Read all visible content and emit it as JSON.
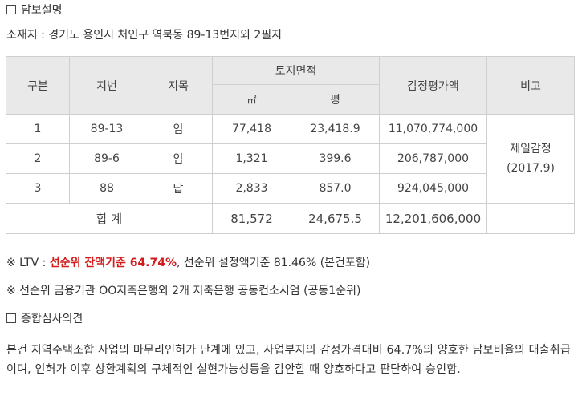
{
  "section1": {
    "title": "담보설명"
  },
  "location": "소재지 : 경기도 용인시 처인구 역북동 89-13번지외 2필지",
  "table": {
    "headers": {
      "gubun": "구분",
      "jibun": "지번",
      "jimok": "지목",
      "area": "토지면적",
      "area_sqm": "㎡",
      "area_pyeong": "평",
      "appraisal": "감정평가액",
      "remark": "비고"
    },
    "rows": [
      {
        "no": "1",
        "jibun": "89-13",
        "jimok": "임",
        "sqm": "77,418",
        "pyeong": "23,418.9",
        "value": "11,070,774,000"
      },
      {
        "no": "2",
        "jibun": "89-6",
        "jimok": "임",
        "sqm": "1,321",
        "pyeong": "399.6",
        "value": "206,787,000"
      },
      {
        "no": "3",
        "jibun": "88",
        "jimok": "답",
        "sqm": "2,833",
        "pyeong": "857.0",
        "value": "924,045,000"
      }
    ],
    "remark_line1": "제일감정",
    "remark_line2": "(2017.9)",
    "total": {
      "label": "합 계",
      "sqm": "81,572",
      "pyeong": "24,675.5",
      "value": "12,201,606,000"
    }
  },
  "ltv": {
    "prefix": "※ LTV : ",
    "highlight": "선순위 잔액기준 64.74%",
    "rest": ", 선순위 설정액기준 81.46% (본건포함)"
  },
  "lender_note": "※ 선순위 금융기관 OO저축은행외 2개 저축은행 공동컨소시엄 (공동1순위)",
  "section2": {
    "title": "종합심사의견"
  },
  "opinion": "본건 지역주택조합 사업의 마무리인허가 단계에 있고, 사업부지의 감정가격대비 64.7%의 양호한 담보비율의 대출취급이며, 인허가 이후 상환계획의 구체적인 실현가능성등을 감안할 때 양호하다고 판단하여 승인함."
}
